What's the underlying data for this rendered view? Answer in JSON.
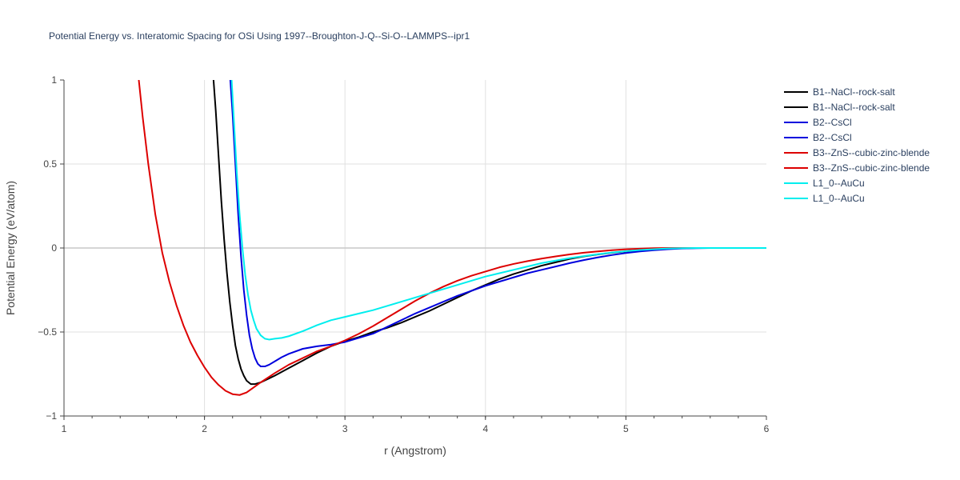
{
  "chart_data": {
    "type": "line",
    "title": "Potential Energy vs. Interatomic Spacing for OSi Using 1997--Broughton-J-Q--Si-O--LAMMPS--ipr1",
    "xlabel": "r (Angstrom)",
    "ylabel": "Potential Energy (eV/atom)",
    "xlim": [
      1,
      6
    ],
    "ylim": [
      -1,
      1
    ],
    "xticks": [
      "1",
      "2",
      "3",
      "4",
      "5",
      "6"
    ],
    "yticks": [
      "−1",
      "−0.5",
      "0",
      "0.5",
      "1"
    ],
    "grid": true,
    "legend_position": "right",
    "series": [
      {
        "name": "B1--NaCl--rock-salt",
        "color": "#000000",
        "x": [
          2.06,
          2.08,
          2.1,
          2.12,
          2.14,
          2.16,
          2.18,
          2.2,
          2.22,
          2.24,
          2.26,
          2.28,
          2.3,
          2.33,
          2.36,
          2.4,
          2.45,
          2.5,
          2.6,
          2.7,
          2.8,
          2.9,
          3.0,
          3.1,
          3.2,
          3.3,
          3.4,
          3.5,
          3.6,
          3.7,
          3.8,
          3.9,
          4.0,
          4.1,
          4.2,
          4.3,
          4.4,
          4.5,
          4.6,
          4.7,
          4.8,
          4.9,
          5.0,
          5.1,
          5.2,
          5.3,
          5.4,
          5.5,
          5.6,
          5.7,
          5.8,
          5.9,
          6.0
        ],
        "y": [
          1.05,
          0.82,
          0.55,
          0.28,
          0.05,
          -0.15,
          -0.32,
          -0.46,
          -0.58,
          -0.66,
          -0.72,
          -0.76,
          -0.79,
          -0.81,
          -0.81,
          -0.8,
          -0.78,
          -0.76,
          -0.715,
          -0.67,
          -0.625,
          -0.585,
          -0.555,
          -0.53,
          -0.5,
          -0.475,
          -0.445,
          -0.41,
          -0.375,
          -0.335,
          -0.295,
          -0.255,
          -0.22,
          -0.185,
          -0.155,
          -0.13,
          -0.105,
          -0.085,
          -0.065,
          -0.05,
          -0.038,
          -0.028,
          -0.02,
          -0.013,
          -0.007,
          -0.003,
          -0.001,
          0.0,
          0.0,
          0.0,
          0.0,
          0.0,
          0.0
        ]
      },
      {
        "name": "B1--NaCl--rock-salt",
        "color": "#000000",
        "x": [],
        "y": []
      },
      {
        "name": "B2--CsCl",
        "color": "#0000dd",
        "x": [
          2.18,
          2.2,
          2.22,
          2.24,
          2.26,
          2.28,
          2.3,
          2.32,
          2.34,
          2.36,
          2.38,
          2.4,
          2.43,
          2.46,
          2.5,
          2.55,
          2.6,
          2.7,
          2.8,
          2.9,
          3.0,
          3.1,
          3.2,
          3.3,
          3.4,
          3.5,
          3.6,
          3.7,
          3.8,
          3.9,
          4.0,
          4.1,
          4.2,
          4.3,
          4.4,
          4.5,
          4.6,
          4.7,
          4.8,
          4.9,
          5.0,
          5.1,
          5.2,
          5.3,
          5.4,
          5.5,
          5.6,
          5.7,
          5.8,
          5.9,
          6.0
        ],
        "y": [
          1.05,
          0.8,
          0.5,
          0.2,
          -0.05,
          -0.25,
          -0.4,
          -0.52,
          -0.6,
          -0.655,
          -0.69,
          -0.705,
          -0.705,
          -0.695,
          -0.675,
          -0.65,
          -0.63,
          -0.6,
          -0.585,
          -0.575,
          -0.56,
          -0.535,
          -0.51,
          -0.47,
          -0.43,
          -0.39,
          -0.355,
          -0.32,
          -0.285,
          -0.255,
          -0.225,
          -0.2,
          -0.175,
          -0.15,
          -0.13,
          -0.11,
          -0.09,
          -0.072,
          -0.056,
          -0.042,
          -0.03,
          -0.02,
          -0.013,
          -0.007,
          -0.003,
          -0.001,
          0.0,
          0.0,
          0.0,
          0.0,
          0.0
        ]
      },
      {
        "name": "B2--CsCl",
        "color": "#0000dd",
        "x": [],
        "y": []
      },
      {
        "name": "B3--ZnS--cubic-zinc-blende",
        "color": "#dd0000",
        "x": [
          1.53,
          1.56,
          1.6,
          1.65,
          1.7,
          1.75,
          1.8,
          1.85,
          1.9,
          1.95,
          2.0,
          2.05,
          2.1,
          2.15,
          2.2,
          2.25,
          2.3,
          2.35,
          2.4,
          2.5,
          2.6,
          2.7,
          2.8,
          2.9,
          3.0,
          3.1,
          3.2,
          3.3,
          3.4,
          3.5,
          3.6,
          3.7,
          3.8,
          3.9,
          4.0,
          4.1,
          4.2,
          4.3,
          4.4,
          4.5,
          4.6,
          4.7,
          4.8,
          4.9,
          5.0,
          5.1,
          5.2,
          5.3,
          5.4,
          5.5,
          5.6,
          5.7,
          5.8,
          5.9,
          6.0
        ],
        "y": [
          1.02,
          0.78,
          0.5,
          0.2,
          -0.03,
          -0.2,
          -0.34,
          -0.46,
          -0.56,
          -0.64,
          -0.71,
          -0.77,
          -0.815,
          -0.85,
          -0.87,
          -0.875,
          -0.86,
          -0.83,
          -0.8,
          -0.745,
          -0.695,
          -0.655,
          -0.615,
          -0.585,
          -0.55,
          -0.51,
          -0.465,
          -0.415,
          -0.365,
          -0.315,
          -0.27,
          -0.23,
          -0.195,
          -0.165,
          -0.14,
          -0.115,
          -0.095,
          -0.078,
          -0.063,
          -0.05,
          -0.038,
          -0.028,
          -0.02,
          -0.013,
          -0.008,
          -0.004,
          -0.001,
          0.0,
          0.0,
          0.0,
          0.0,
          0.0,
          0.0,
          0.0,
          0.0
        ]
      },
      {
        "name": "B3--ZnS--cubic-zinc-blende",
        "color": "#dd0000",
        "x": [],
        "y": []
      },
      {
        "name": "L1_0--AuCu",
        "color": "#00eeee",
        "x": [
          2.19,
          2.21,
          2.23,
          2.25,
          2.27,
          2.29,
          2.31,
          2.33,
          2.35,
          2.37,
          2.4,
          2.43,
          2.46,
          2.5,
          2.55,
          2.6,
          2.7,
          2.8,
          2.9,
          3.0,
          3.1,
          3.2,
          3.3,
          3.4,
          3.5,
          3.6,
          3.7,
          3.8,
          3.9,
          4.0,
          4.1,
          4.2,
          4.3,
          4.4,
          4.5,
          4.6,
          4.7,
          4.8,
          4.9,
          5.0,
          5.1,
          5.2,
          5.3,
          5.4,
          5.5,
          5.6,
          5.7,
          5.8,
          5.9,
          6.0
        ],
        "y": [
          1.05,
          0.75,
          0.45,
          0.2,
          -0.0,
          -0.16,
          -0.28,
          -0.37,
          -0.43,
          -0.48,
          -0.52,
          -0.54,
          -0.545,
          -0.54,
          -0.535,
          -0.525,
          -0.495,
          -0.46,
          -0.43,
          -0.41,
          -0.39,
          -0.37,
          -0.345,
          -0.32,
          -0.295,
          -0.27,
          -0.245,
          -0.22,
          -0.195,
          -0.17,
          -0.15,
          -0.13,
          -0.11,
          -0.09,
          -0.075,
          -0.06,
          -0.048,
          -0.037,
          -0.027,
          -0.019,
          -0.012,
          -0.007,
          -0.003,
          -0.001,
          0.0,
          0.0,
          0.0,
          0.0,
          0.0,
          0.0
        ]
      },
      {
        "name": "L1_0--AuCu",
        "color": "#00eeee",
        "x": [],
        "y": []
      }
    ]
  }
}
